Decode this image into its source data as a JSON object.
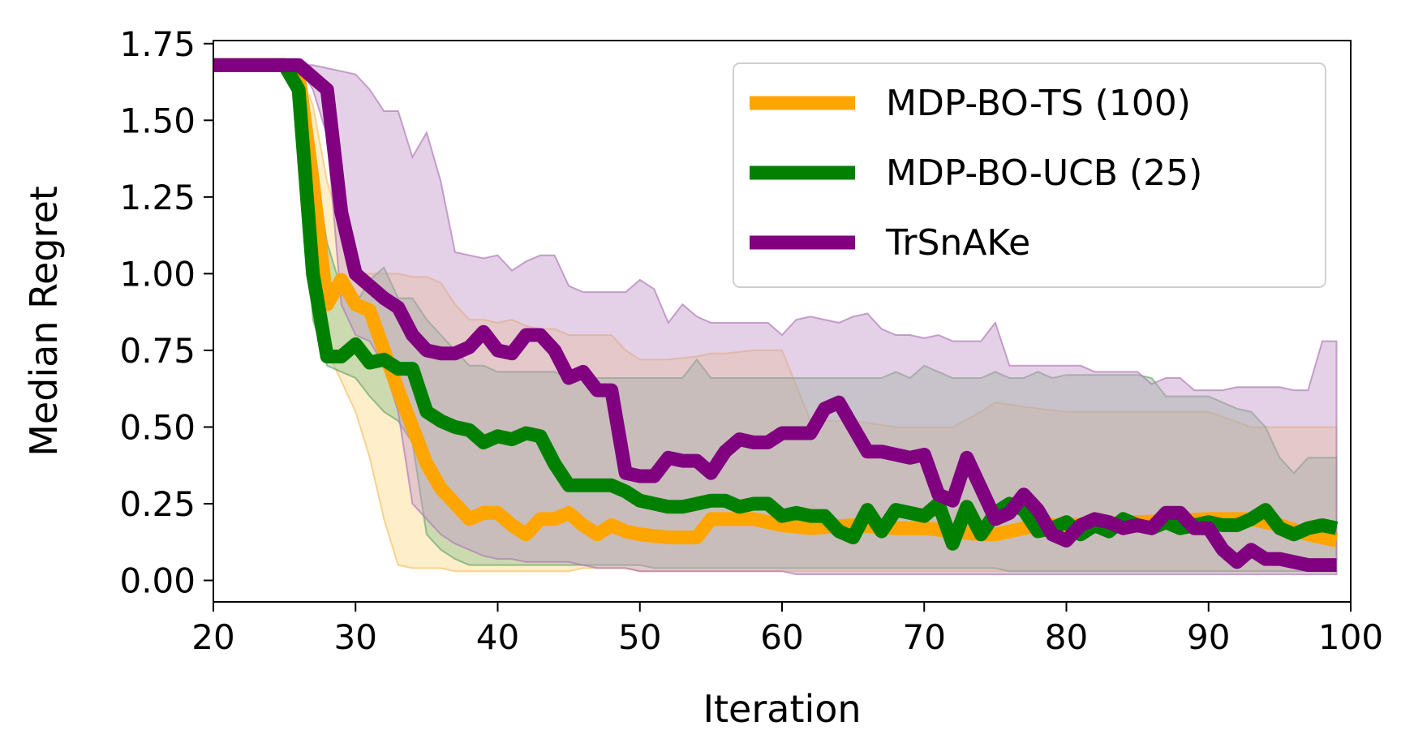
{
  "chart_data": {
    "type": "line",
    "title": "",
    "xlabel": "Iteration",
    "ylabel": "Median Regret",
    "xlim": [
      20,
      100
    ],
    "ylim": [
      -0.07,
      1.76
    ],
    "xticks": [
      20,
      30,
      40,
      50,
      60,
      70,
      80,
      90,
      100
    ],
    "yticks": [
      0.0,
      0.25,
      0.5,
      0.75,
      1.0,
      1.25,
      1.5,
      1.75
    ],
    "xtick_labels": [
      "20",
      "30",
      "40",
      "50",
      "60",
      "70",
      "80",
      "90",
      "100"
    ],
    "ytick_labels": [
      "0.00",
      "0.25",
      "0.50",
      "0.75",
      "1.00",
      "1.25",
      "1.50",
      "1.75"
    ],
    "grid": false,
    "legend_position": "top-right",
    "series": [
      {
        "name": "MDP-BO-TS (100)",
        "color": "#FFA500",
        "band_fill": "#FFD98A",
        "band_edge": "#F5C36A",
        "x": [
          20,
          25,
          26,
          27,
          28,
          29,
          30,
          31,
          32,
          33,
          34,
          35,
          36,
          37,
          38,
          39,
          40,
          41,
          42,
          43,
          44,
          45,
          46,
          47,
          48,
          49,
          50,
          52,
          54,
          55,
          56,
          58,
          60,
          62,
          65,
          68,
          70,
          72,
          74,
          75,
          78,
          80,
          85,
          90,
          93,
          95,
          97,
          99
        ],
        "y": [
          1.68,
          1.68,
          1.65,
          1.3,
          0.9,
          0.98,
          0.9,
          0.88,
          0.75,
          0.62,
          0.5,
          0.38,
          0.3,
          0.25,
          0.2,
          0.22,
          0.22,
          0.18,
          0.15,
          0.2,
          0.2,
          0.22,
          0.18,
          0.15,
          0.18,
          0.16,
          0.15,
          0.14,
          0.14,
          0.2,
          0.2,
          0.2,
          0.18,
          0.17,
          0.18,
          0.17,
          0.17,
          0.16,
          0.15,
          0.15,
          0.18,
          0.18,
          0.19,
          0.2,
          0.2,
          0.18,
          0.15,
          0.13
        ],
        "lower": [
          1.68,
          1.68,
          1.6,
          0.9,
          0.75,
          0.65,
          0.55,
          0.4,
          0.2,
          0.05,
          0.04,
          0.04,
          0.04,
          0.03,
          0.03,
          0.03,
          0.03,
          0.03,
          0.03,
          0.03,
          0.03,
          0.03,
          0.04,
          0.04,
          0.04,
          0.04,
          0.03,
          0.03,
          0.03,
          0.03,
          0.03,
          0.03,
          0.03,
          0.03,
          0.03,
          0.03,
          0.03,
          0.03,
          0.03,
          0.03,
          0.03,
          0.03,
          0.03,
          0.03,
          0.03,
          0.03,
          0.03,
          0.03
        ],
        "upper": [
          1.68,
          1.68,
          1.66,
          1.55,
          1.3,
          1.15,
          1.0,
          1.0,
          1.0,
          1.0,
          0.99,
          0.99,
          0.97,
          0.9,
          0.85,
          0.85,
          0.84,
          0.85,
          0.83,
          0.82,
          0.82,
          0.8,
          0.8,
          0.8,
          0.8,
          0.75,
          0.72,
          0.72,
          0.73,
          0.74,
          0.74,
          0.75,
          0.75,
          0.52,
          0.52,
          0.5,
          0.5,
          0.5,
          0.55,
          0.58,
          0.56,
          0.55,
          0.55,
          0.55,
          0.5,
          0.5,
          0.5,
          0.5
        ]
      },
      {
        "name": "MDP-BO-UCB (25)",
        "color": "#008000",
        "band_fill": "#8FC08F",
        "band_edge": "#6FA86F",
        "x": [
          20,
          25,
          26,
          27,
          28,
          29,
          30,
          31,
          32,
          33,
          34,
          35,
          36,
          37,
          38,
          39,
          40,
          41,
          42,
          43,
          44,
          45,
          46,
          47,
          48,
          49,
          50,
          51,
          52,
          53,
          54,
          55,
          56,
          57,
          58,
          59,
          60,
          61,
          62,
          63,
          64,
          65,
          66,
          67,
          68,
          69,
          70,
          71,
          72,
          73,
          74,
          75,
          76,
          77,
          78,
          79,
          80,
          81,
          82,
          83,
          84,
          85,
          86,
          87,
          88,
          89,
          90,
          91,
          92,
          93,
          94,
          95,
          96,
          97,
          98,
          99
        ],
        "y": [
          1.68,
          1.68,
          1.6,
          1.0,
          0.73,
          0.73,
          0.77,
          0.71,
          0.72,
          0.69,
          0.69,
          0.55,
          0.52,
          0.5,
          0.49,
          0.45,
          0.47,
          0.46,
          0.48,
          0.47,
          0.38,
          0.31,
          0.31,
          0.31,
          0.31,
          0.29,
          0.26,
          0.25,
          0.24,
          0.24,
          0.25,
          0.26,
          0.26,
          0.24,
          0.25,
          0.25,
          0.21,
          0.22,
          0.21,
          0.21,
          0.16,
          0.14,
          0.23,
          0.16,
          0.23,
          0.22,
          0.21,
          0.25,
          0.12,
          0.24,
          0.15,
          0.22,
          0.25,
          0.23,
          0.16,
          0.17,
          0.19,
          0.15,
          0.18,
          0.16,
          0.2,
          0.18,
          0.17,
          0.19,
          0.17,
          0.18,
          0.19,
          0.18,
          0.18,
          0.2,
          0.23,
          0.17,
          0.15,
          0.17,
          0.18,
          0.17
        ],
        "lower": [
          1.68,
          1.68,
          1.58,
          0.85,
          0.7,
          0.68,
          0.66,
          0.6,
          0.55,
          0.52,
          0.45,
          0.15,
          0.1,
          0.07,
          0.05,
          0.05,
          0.05,
          0.05,
          0.05,
          0.05,
          0.05,
          0.05,
          0.05,
          0.05,
          0.05,
          0.05,
          0.05,
          0.04,
          0.04,
          0.04,
          0.04,
          0.04,
          0.04,
          0.04,
          0.04,
          0.04,
          0.04,
          0.04,
          0.04,
          0.04,
          0.04,
          0.04,
          0.04,
          0.04,
          0.04,
          0.04,
          0.04,
          0.04,
          0.04,
          0.04,
          0.04,
          0.04,
          0.03,
          0.03,
          0.03,
          0.03,
          0.03,
          0.03,
          0.03,
          0.03,
          0.03,
          0.03,
          0.03,
          0.03,
          0.03,
          0.03,
          0.03,
          0.03,
          0.03,
          0.03,
          0.03,
          0.03,
          0.03,
          0.03,
          0.03,
          0.03
        ],
        "upper": [
          1.68,
          1.68,
          1.66,
          1.4,
          1.1,
          0.95,
          0.9,
          0.98,
          1.02,
          0.92,
          0.92,
          0.85,
          0.8,
          0.75,
          0.7,
          0.7,
          0.68,
          0.68,
          0.68,
          0.68,
          0.68,
          0.66,
          0.66,
          0.66,
          0.66,
          0.66,
          0.66,
          0.66,
          0.66,
          0.66,
          0.72,
          0.66,
          0.66,
          0.66,
          0.66,
          0.66,
          0.66,
          0.66,
          0.66,
          0.66,
          0.66,
          0.66,
          0.66,
          0.66,
          0.68,
          0.66,
          0.7,
          0.68,
          0.66,
          0.66,
          0.66,
          0.68,
          0.66,
          0.66,
          0.68,
          0.66,
          0.67,
          0.67,
          0.67,
          0.67,
          0.67,
          0.67,
          0.66,
          0.6,
          0.6,
          0.6,
          0.6,
          0.58,
          0.56,
          0.55,
          0.5,
          0.4,
          0.35,
          0.4,
          0.4,
          0.4
        ]
      },
      {
        "name": "TrSnAKe",
        "color": "#800080",
        "band_fill": "#C39AC9",
        "band_edge": "#B07CB8",
        "x": [
          20,
          25,
          26,
          27,
          28,
          29,
          30,
          31,
          32,
          33,
          34,
          35,
          36,
          37,
          38,
          39,
          40,
          41,
          42,
          43,
          44,
          45,
          46,
          47,
          48,
          49,
          50,
          51,
          52,
          53,
          54,
          55,
          56,
          57,
          58,
          59,
          60,
          61,
          62,
          63,
          64,
          65,
          66,
          67,
          68,
          69,
          70,
          71,
          72,
          73,
          74,
          75,
          76,
          77,
          78,
          79,
          80,
          81,
          82,
          83,
          84,
          85,
          86,
          87,
          88,
          89,
          90,
          91,
          92,
          93,
          94,
          95,
          96,
          97,
          98,
          99
        ],
        "y": [
          1.68,
          1.68,
          1.68,
          1.64,
          1.6,
          1.2,
          1.0,
          0.96,
          0.92,
          0.89,
          0.8,
          0.75,
          0.74,
          0.74,
          0.76,
          0.81,
          0.75,
          0.74,
          0.8,
          0.8,
          0.75,
          0.66,
          0.68,
          0.62,
          0.62,
          0.35,
          0.34,
          0.34,
          0.4,
          0.39,
          0.39,
          0.35,
          0.42,
          0.46,
          0.45,
          0.45,
          0.48,
          0.48,
          0.48,
          0.56,
          0.58,
          0.5,
          0.42,
          0.42,
          0.41,
          0.4,
          0.41,
          0.28,
          0.26,
          0.4,
          0.3,
          0.2,
          0.22,
          0.28,
          0.23,
          0.15,
          0.13,
          0.18,
          0.2,
          0.19,
          0.17,
          0.18,
          0.17,
          0.22,
          0.22,
          0.17,
          0.17,
          0.1,
          0.06,
          0.1,
          0.07,
          0.07,
          0.06,
          0.05,
          0.05,
          0.05
        ],
        "lower": [
          1.68,
          1.68,
          1.68,
          1.6,
          1.45,
          0.9,
          0.8,
          0.78,
          0.7,
          0.55,
          0.25,
          0.2,
          0.15,
          0.12,
          0.1,
          0.08,
          0.07,
          0.07,
          0.06,
          0.06,
          0.06,
          0.06,
          0.05,
          0.04,
          0.04,
          0.04,
          0.03,
          0.03,
          0.03,
          0.03,
          0.03,
          0.03,
          0.03,
          0.03,
          0.03,
          0.03,
          0.03,
          0.02,
          0.02,
          0.02,
          0.02,
          0.02,
          0.02,
          0.02,
          0.02,
          0.02,
          0.02,
          0.02,
          0.02,
          0.02,
          0.02,
          0.02,
          0.02,
          0.02,
          0.02,
          0.02,
          0.02,
          0.02,
          0.02,
          0.02,
          0.02,
          0.02,
          0.02,
          0.02,
          0.02,
          0.02,
          0.02,
          0.02,
          0.02,
          0.02,
          0.02,
          0.02,
          0.02,
          0.02,
          0.02,
          0.02
        ],
        "upper": [
          1.68,
          1.68,
          1.68,
          1.68,
          1.67,
          1.66,
          1.65,
          1.6,
          1.53,
          1.53,
          1.38,
          1.46,
          1.3,
          1.07,
          1.06,
          1.05,
          1.06,
          1.01,
          1.04,
          1.06,
          1.06,
          0.96,
          0.94,
          0.94,
          0.94,
          0.94,
          0.98,
          0.95,
          0.84,
          0.9,
          0.86,
          0.84,
          0.84,
          0.84,
          0.84,
          0.84,
          0.8,
          0.85,
          0.86,
          0.85,
          0.84,
          0.86,
          0.87,
          0.82,
          0.8,
          0.8,
          0.79,
          0.8,
          0.78,
          0.78,
          0.78,
          0.84,
          0.7,
          0.7,
          0.7,
          0.7,
          0.7,
          0.7,
          0.68,
          0.68,
          0.68,
          0.68,
          0.64,
          0.66,
          0.66,
          0.62,
          0.62,
          0.62,
          0.63,
          0.63,
          0.63,
          0.63,
          0.62,
          0.62,
          0.78,
          0.78
        ]
      }
    ]
  }
}
